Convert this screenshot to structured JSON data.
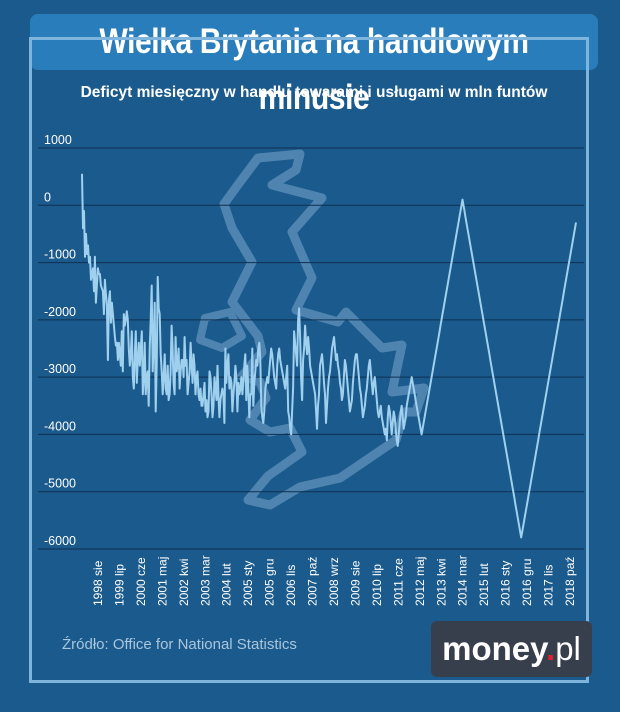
{
  "header": {
    "title": "Wielka Brytania na handlowym minusie"
  },
  "footer": {
    "source": "Źródło: Office for National Statistics",
    "logo_main": "money",
    "logo_dot": ".",
    "logo_tld": "pl"
  },
  "colors": {
    "background": "#1b5a8c",
    "title_box": "#2a7dbb",
    "line": "#9fd0ee",
    "grid": "#0f3050",
    "map_outline": "#4f84b0",
    "frame": "#7fb4dc",
    "logo_bg": "#383f4c",
    "logo_dot": "#e0202e"
  },
  "chart_data": {
    "type": "line",
    "title": "Deficyt miesięczny w handlu towarami i usługami w mln funtów",
    "xlabel": "",
    "ylabel": "",
    "ylim": [
      -6000,
      1000
    ],
    "y_ticks": [
      1000,
      0,
      -1000,
      -2000,
      -3000,
      -4000,
      -5000,
      -6000
    ],
    "y_tick_labels": [
      "1000",
      "0",
      "-1000",
      "-2000",
      "-3000",
      "-4000",
      "-5000",
      "-6000"
    ],
    "x_tick_labels": [
      "1998 sie",
      "1999 lip",
      "2000 cze",
      "2001 maj",
      "2002 kwi",
      "2003 mar",
      "2004 lut",
      "2005 sty",
      "2005 gru",
      "2006 lis",
      "2007 paź",
      "2008 wrz",
      "2009 sie",
      "2010 lip",
      "2011 cze",
      "2012 maj",
      "2013 kwi",
      "2014 mar",
      "2015 lut",
      "2016 sty",
      "2016 gru",
      "2017 lis",
      "2018 paź"
    ],
    "grid": "horizontal",
    "legend": "none",
    "series": [
      {
        "start": "1998 sie",
        "values": [
          550,
          -400,
          -100,
          -900,
          -500,
          -850,
          -700,
          -1000,
          -900,
          -1300,
          -1200,
          -1100,
          -1500,
          -900,
          -1700,
          -1400,
          -1100,
          -1200,
          -1200,
          -1400,
          -1450,
          -1500,
          -1900,
          -1300,
          -1550,
          -1750,
          -2700,
          -1650,
          -1500,
          -2050,
          -1700,
          -1900,
          -2100,
          -2300,
          -2450,
          -2400,
          -2700,
          -2400,
          -2600,
          -2800,
          -2200,
          -2900,
          -1900,
          -2100,
          -2000,
          -1850,
          -2000,
          -2500,
          -2800,
          -2600,
          -2200,
          -3000,
          -3200,
          -2600,
          -2200,
          -3100,
          -2700,
          -2400,
          -2800,
          -2500,
          -2200,
          -3300,
          -3000,
          -2400,
          -3300,
          -3000,
          -2900,
          -3500,
          -2500,
          -2000,
          -1400,
          -2900,
          -2400,
          -1700,
          -3600,
          -2800,
          -1250,
          -1800,
          -1900,
          -2600,
          -2900,
          -3300,
          -3000,
          -2600,
          -3200,
          -3300,
          -2800,
          -3400,
          -3300,
          -2900,
          -2100,
          -2500,
          -3100,
          -3300,
          -2300,
          -2900,
          -2800,
          -2500,
          -3200,
          -2900,
          -2700,
          -2700,
          -3000,
          -2300,
          -2800,
          -2700,
          -3300,
          -3100,
          -2900,
          -2400,
          -2800,
          -3100,
          -2600,
          -2800,
          -3300,
          -3000,
          -2900,
          -3300,
          -3400,
          -3200,
          -3500,
          -3500,
          -3300,
          -3100,
          -3600,
          -3400,
          -3700,
          -3600,
          -2900,
          -3000,
          -3300,
          -3700,
          -3500,
          -3000,
          -3200,
          -3400,
          -2800,
          -3300,
          -3700,
          -3400,
          -3300,
          -3200,
          -3300,
          -3800,
          -2500,
          -3100,
          -2800,
          -2600,
          -3200,
          -3000,
          -3100,
          -3600,
          -3300,
          -3100,
          -2800,
          -3000,
          -3600,
          -3100,
          -3300,
          -3200,
          -3000,
          -3300,
          -3100,
          -2800,
          -2600,
          -3400,
          -2800,
          -3200,
          -3700,
          -3300,
          -3300,
          -2500,
          -3500,
          -3100,
          -2900,
          -2700,
          -2800,
          -2500,
          -2400,
          -2700,
          -3500,
          -3700,
          -3800,
          -3600,
          -3200,
          -3100,
          -3000,
          -3100,
          -2900,
          -2700,
          -2500,
          -2600,
          -2800,
          -3000,
          -3100,
          -3200,
          -2800,
          -2600,
          -2500,
          -2700,
          -2800,
          -2900,
          -3000,
          -3100,
          -3200,
          -3000,
          -2800,
          -3600,
          -3700,
          -3900,
          -4000,
          -3600,
          -3200,
          -2200,
          -2400,
          -2600,
          -2800,
          -2000,
          -1800,
          -2300,
          -3000,
          -3400,
          -2700,
          -2500,
          -2100,
          -2400,
          -2600,
          -2300,
          -2500,
          -2800,
          -2900,
          -3000,
          -3100,
          -3200,
          -3300,
          -3600,
          -3900,
          -3500,
          -3300,
          -2800,
          -2700,
          -2600,
          -2800,
          -3100,
          -3300,
          -3800,
          -3500,
          -3200,
          -3000,
          -2900,
          -2700,
          -2500,
          -2400,
          -2300,
          -2500,
          -2700,
          -2600,
          -2800,
          -2900,
          -3100,
          -3200,
          -3400,
          -3300,
          -3000,
          -2700,
          -2800,
          -3000,
          -3200,
          -3400,
          -3600,
          -3500,
          -3400,
          -3100,
          -2900,
          -2700,
          -2600,
          -2600,
          -2800,
          -3000,
          -3200,
          -3300,
          -3500,
          -3700,
          -3600,
          -3500,
          -3300,
          -3200,
          -3000,
          -2800,
          -2700,
          -2900,
          -3100,
          -3300,
          -3100,
          -3000,
          -3200,
          -3400,
          -3600,
          -3700,
          -3600,
          -3500,
          -3700,
          -3800,
          -3900,
          -4000,
          -3900,
          -4100,
          -3700,
          -3500,
          -3600,
          -3800,
          -4000,
          -3800,
          -3600,
          -3700,
          -3900,
          -4100,
          -4200,
          -4000,
          -3800,
          -3600,
          -3500,
          -3700,
          -3900,
          -3800,
          -3700,
          -3500,
          -3400,
          -3300,
          -3200,
          -3100,
          -3000,
          -3100,
          -3200,
          -3300,
          -3400,
          -3500,
          -3600,
          -3700,
          -3800,
          -3900,
          -4000,
          -3900,
          -3800,
          -3700,
          -3600,
          -3500,
          -3400,
          -3300,
          -3200,
          -3100,
          -3000,
          -2900,
          -2800,
          -2700,
          -2600,
          -2500,
          -2400,
          -2300,
          -2200,
          -2100,
          -2000,
          -1900,
          -1800,
          -1700,
          -1600,
          -1500,
          -1400,
          -1300,
          -1200,
          -1100,
          -1000,
          -900,
          -800,
          -700,
          -600,
          -500,
          -400,
          -300,
          -200,
          -100,
          0,
          100,
          0,
          -100,
          -200,
          -300,
          -400,
          -500,
          -600,
          -700,
          -800,
          -900,
          -1000,
          -1100,
          -1200,
          -1300,
          -1400,
          -1500,
          -1600,
          -1700,
          -1800,
          -1900,
          -2000,
          -2100,
          -2200,
          -2300,
          -2400,
          -2500,
          -2600,
          -2700,
          -2800,
          -2900,
          -3000,
          -3100,
          -3200,
          -3300,
          -3400,
          -3500,
          -3600,
          -3700,
          -3800,
          -3900,
          -4000,
          -4100,
          -4200,
          -4300,
          -4400,
          -4500,
          -4600,
          -4700,
          -4800,
          -4900,
          -5000,
          -5100,
          -5200,
          -5300,
          -5400,
          -5500,
          -5600,
          -5700,
          -5800,
          -5700,
          -5600,
          -5500,
          -5400,
          -5300,
          -5200,
          -5100,
          -5000,
          -4900,
          -4800,
          -4700,
          -4600,
          -4500,
          -4400,
          -4300,
          -4200,
          -4100,
          -4000,
          -3900,
          -3800,
          -3700,
          -3600,
          -3500,
          -3400,
          -3300,
          -3200,
          -3100,
          -3000,
          -2900,
          -2800,
          -2700,
          -2600,
          -2500,
          -2400,
          -2300,
          -2200,
          -2100,
          -2000,
          -1900,
          -1800,
          -1700,
          -1600,
          -1500,
          -1400,
          -1300,
          -1200,
          -1100,
          -1000,
          -900,
          -800,
          -700,
          -600,
          -500,
          -400,
          -300
        ]
      }
    ]
  }
}
